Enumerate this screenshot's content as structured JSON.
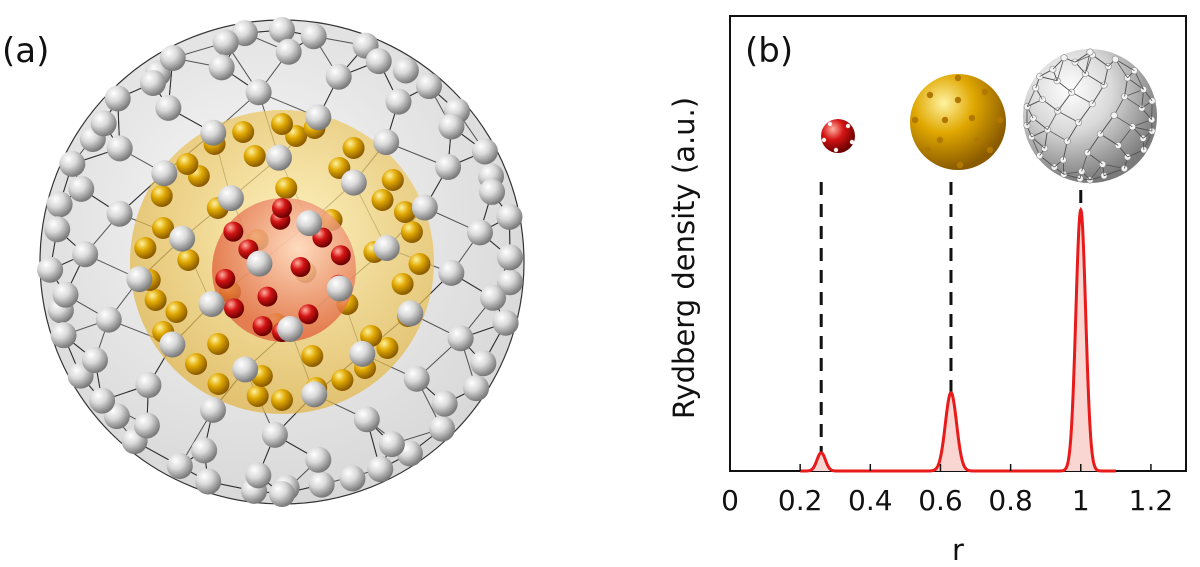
{
  "figure": {
    "panel_a_label": "(a)",
    "panel_b_label": "(b)",
    "colors": {
      "silver": "#d8d8d8",
      "gold": "#e0a800",
      "red": "#d41414",
      "curve": "#e81a1a",
      "curve_fill": "#f9d6d2"
    }
  },
  "chart_data": {
    "type": "line",
    "title": "",
    "xlabel": "r",
    "ylabel": "Rydberg density (a.u.)",
    "xlim": [
      0,
      1.3
    ],
    "ylim": [
      0,
      1
    ],
    "xticks": [
      0,
      0.2,
      0.4,
      0.6,
      0.8,
      1.0,
      1.2
    ],
    "xtick_labels": [
      "0",
      "0.2",
      "0.4",
      "0.6",
      "0.8",
      "1",
      "1.2"
    ],
    "peaks": [
      {
        "center": 0.26,
        "height": 0.07,
        "width": 0.012,
        "shell": "red"
      },
      {
        "center": 0.63,
        "height": 0.3,
        "width": 0.016,
        "shell": "gold"
      },
      {
        "center": 1.0,
        "height": 1.0,
        "width": 0.014,
        "shell": "silver"
      }
    ],
    "shell_markers": [
      {
        "x": 0.26,
        "label_icon": "red-shell-icon"
      },
      {
        "x": 0.63,
        "label_icon": "gold-shell-icon"
      },
      {
        "x": 1.0,
        "label_icon": "silver-shell-icon"
      }
    ]
  }
}
